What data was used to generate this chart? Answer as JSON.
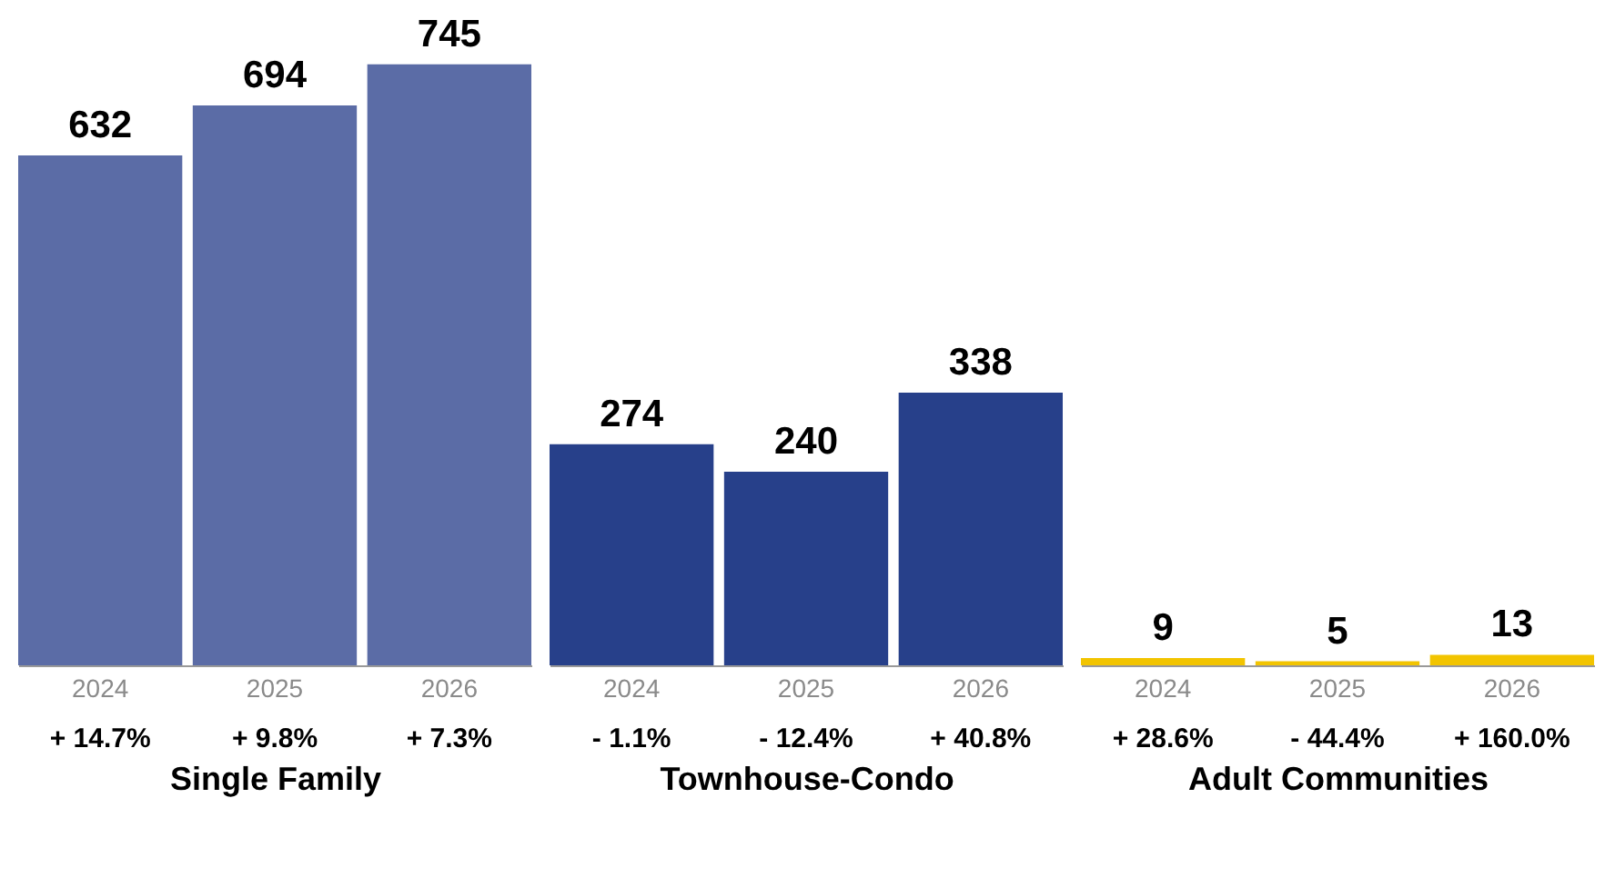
{
  "chart_data": [
    {
      "type": "bar",
      "xlabel": "Single Family",
      "categories": [
        "2024",
        "2025",
        "2026"
      ],
      "values": [
        632,
        694,
        745
      ],
      "color": "#5b6ca6",
      "data_labels": true,
      "tick_labels": "x",
      "annotations": [
        "+ 14.7%",
        "+ 9.8%",
        "+ 7.3%"
      ]
    },
    {
      "type": "bar",
      "xlabel": "Townhouse-Condo",
      "categories": [
        "2024",
        "2025",
        "2026"
      ],
      "values": [
        274,
        240,
        338
      ],
      "color": "#27408a",
      "data_labels": true,
      "tick_labels": "x",
      "annotations": [
        "- 1.1%",
        "- 12.4%",
        "+ 40.8%"
      ]
    },
    {
      "type": "bar",
      "xlabel": "Adult Communities",
      "categories": [
        "2024",
        "2025",
        "2026"
      ],
      "values": [
        9,
        5,
        13
      ],
      "color": "#f2c400",
      "data_labels": true,
      "tick_labels": "x",
      "annotations": [
        "+ 28.6%",
        "- 44.4%",
        "+ 160.0%"
      ]
    }
  ]
}
